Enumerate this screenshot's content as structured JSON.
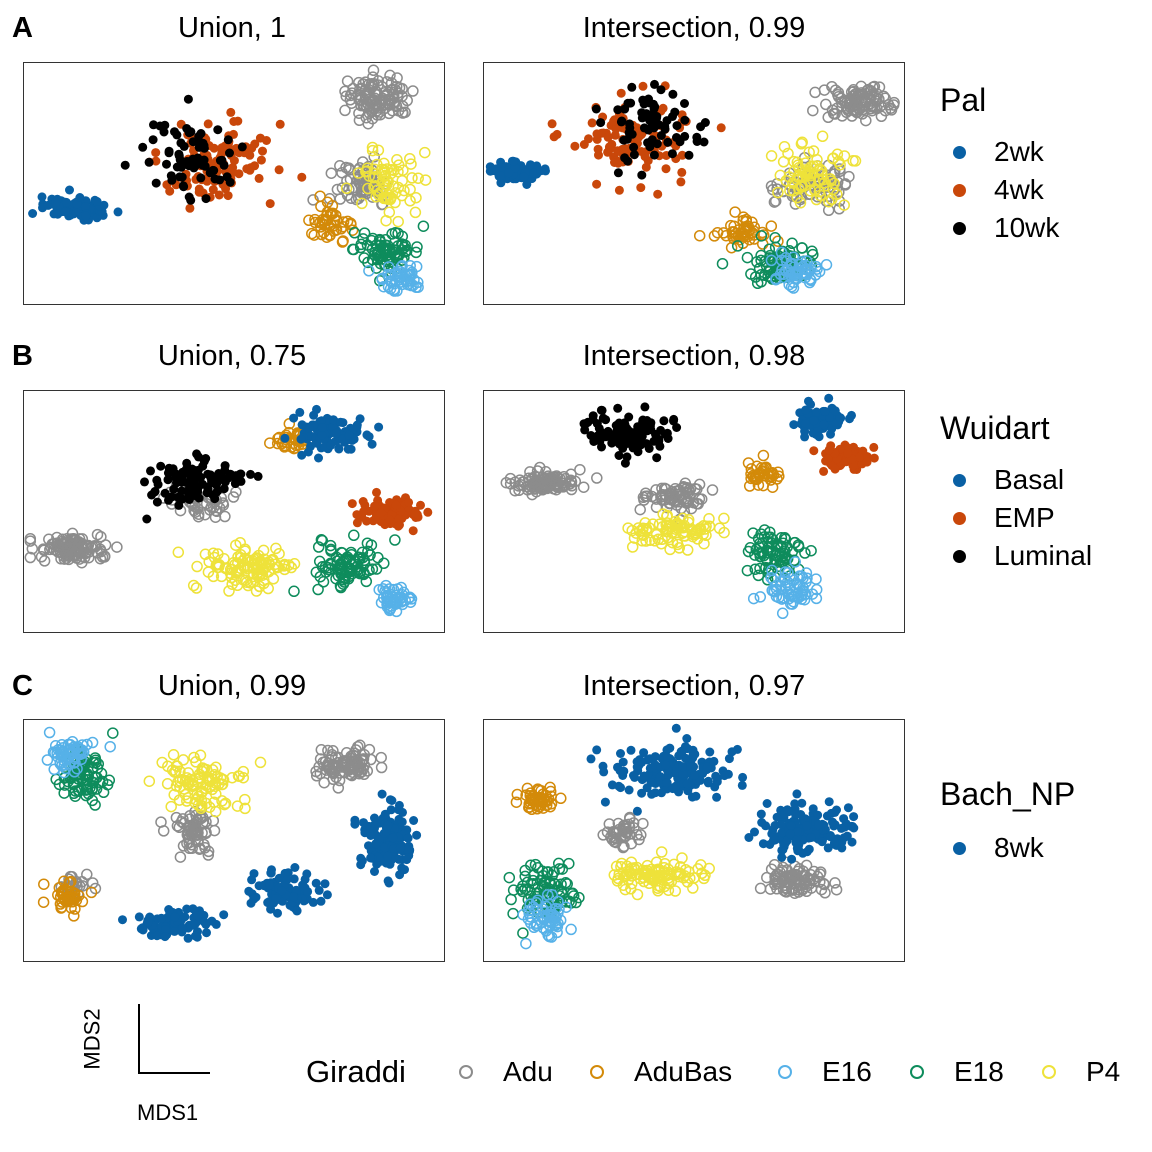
{
  "colors": {
    "Adu": "#8c8c8c",
    "AduBas": "#d38a09",
    "E16": "#56b1e8",
    "E18": "#0e8c5c",
    "P4": "#eee23a",
    "blue": "#0960a4",
    "orange": "#c9470a",
    "black": "#000000"
  },
  "axis_key": {
    "x_label": "MDS1",
    "y_label": "MDS2"
  },
  "giraddi_legend": {
    "title": "Giraddi",
    "entries": [
      "Adu",
      "AduBas",
      "E16",
      "E18",
      "P4"
    ]
  },
  "rows": [
    {
      "letter": "A",
      "legend": {
        "title": "Pal",
        "entries": [
          {
            "label": "2wk",
            "color": "blue"
          },
          {
            "label": "4wk",
            "color": "orange"
          },
          {
            "label": "10wk",
            "color": "black"
          }
        ]
      },
      "panels": [
        {
          "title": "Union, 1"
        },
        {
          "title": "Intersection, 0.99"
        }
      ]
    },
    {
      "letter": "B",
      "legend": {
        "title": "Wuidart",
        "entries": [
          {
            "label": "Basal",
            "color": "blue"
          },
          {
            "label": "EMP",
            "color": "orange"
          },
          {
            "label": "Luminal",
            "color": "black"
          }
        ]
      },
      "panels": [
        {
          "title": "Union, 0.75"
        },
        {
          "title": "Intersection, 0.98"
        }
      ]
    },
    {
      "letter": "C",
      "legend": {
        "title": "Bach_NP",
        "entries": [
          {
            "label": "8wk",
            "color": "blue"
          }
        ]
      },
      "panels": [
        {
          "title": "Union, 0.99"
        },
        {
          "title": "Intersection, 0.97"
        }
      ]
    }
  ],
  "chart_data": [
    {
      "type": "scatter",
      "title": "Union, 1",
      "clusters": [
        {
          "group": "Adu",
          "style": "open",
          "center": [
            0.84,
            0.14
          ],
          "spread": [
            0.07,
            0.08
          ],
          "n": 110
        },
        {
          "group": "Adu",
          "style": "open",
          "center": [
            0.8,
            0.5
          ],
          "spread": [
            0.06,
            0.1
          ],
          "n": 70
        },
        {
          "group": "P4",
          "style": "open",
          "center": [
            0.86,
            0.5
          ],
          "spread": [
            0.06,
            0.12
          ],
          "n": 70
        },
        {
          "group": "AduBas",
          "style": "open",
          "center": [
            0.73,
            0.66
          ],
          "spread": [
            0.05,
            0.06
          ],
          "n": 45
        },
        {
          "group": "E18",
          "style": "open",
          "center": [
            0.86,
            0.77
          ],
          "spread": [
            0.07,
            0.07
          ],
          "n": 80
        },
        {
          "group": "E16",
          "style": "open",
          "center": [
            0.89,
            0.88
          ],
          "spread": [
            0.05,
            0.05
          ],
          "n": 50
        },
        {
          "group": "2wk",
          "style": "filled",
          "center": [
            0.13,
            0.6
          ],
          "spread": [
            0.07,
            0.035
          ],
          "n": 100
        },
        {
          "group": "4wk",
          "style": "filled",
          "center": [
            0.45,
            0.4
          ],
          "spread": [
            0.12,
            0.16
          ],
          "n": 110
        },
        {
          "group": "10wk",
          "style": "filled",
          "center": [
            0.4,
            0.4
          ],
          "spread": [
            0.1,
            0.16
          ],
          "n": 70
        }
      ]
    },
    {
      "type": "scatter",
      "title": "Intersection, 0.99",
      "clusters": [
        {
          "group": "Adu",
          "style": "open",
          "center": [
            0.88,
            0.16
          ],
          "spread": [
            0.07,
            0.06
          ],
          "n": 100
        },
        {
          "group": "Adu",
          "style": "open",
          "center": [
            0.78,
            0.5
          ],
          "spread": [
            0.08,
            0.09
          ],
          "n": 70
        },
        {
          "group": "P4",
          "style": "open",
          "center": [
            0.78,
            0.46
          ],
          "spread": [
            0.08,
            0.11
          ],
          "n": 80
        },
        {
          "group": "AduBas",
          "style": "open",
          "center": [
            0.61,
            0.7
          ],
          "spread": [
            0.06,
            0.05
          ],
          "n": 50
        },
        {
          "group": "E18",
          "style": "open",
          "center": [
            0.71,
            0.82
          ],
          "spread": [
            0.07,
            0.07
          ],
          "n": 80
        },
        {
          "group": "E16",
          "style": "open",
          "center": [
            0.74,
            0.86
          ],
          "spread": [
            0.05,
            0.05
          ],
          "n": 55
        },
        {
          "group": "2wk",
          "style": "filled",
          "center": [
            0.07,
            0.45
          ],
          "spread": [
            0.05,
            0.035
          ],
          "n": 90
        },
        {
          "group": "4wk",
          "style": "filled",
          "center": [
            0.35,
            0.3
          ],
          "spread": [
            0.13,
            0.15
          ],
          "n": 110
        },
        {
          "group": "10wk",
          "style": "filled",
          "center": [
            0.4,
            0.26
          ],
          "spread": [
            0.1,
            0.14
          ],
          "n": 70
        }
      ]
    },
    {
      "type": "scatter",
      "title": "Union, 0.75",
      "clusters": [
        {
          "group": "Adu",
          "style": "open",
          "center": [
            0.11,
            0.65
          ],
          "spread": [
            0.07,
            0.05
          ],
          "n": 110
        },
        {
          "group": "Adu",
          "style": "open",
          "center": [
            0.41,
            0.45
          ],
          "spread": [
            0.06,
            0.06
          ],
          "n": 50
        },
        {
          "group": "P4",
          "style": "open",
          "center": [
            0.53,
            0.73
          ],
          "spread": [
            0.09,
            0.08
          ],
          "n": 110
        },
        {
          "group": "AduBas",
          "style": "open",
          "center": [
            0.64,
            0.2
          ],
          "spread": [
            0.04,
            0.05
          ],
          "n": 35
        },
        {
          "group": "E18",
          "style": "open",
          "center": [
            0.77,
            0.72
          ],
          "spread": [
            0.07,
            0.09
          ],
          "n": 90
        },
        {
          "group": "E16",
          "style": "open",
          "center": [
            0.88,
            0.86
          ],
          "spread": [
            0.04,
            0.05
          ],
          "n": 50
        },
        {
          "group": "Basal",
          "style": "filled",
          "center": [
            0.72,
            0.18
          ],
          "spread": [
            0.08,
            0.07
          ],
          "n": 100
        },
        {
          "group": "EMP",
          "style": "filled",
          "center": [
            0.87,
            0.5
          ],
          "spread": [
            0.06,
            0.05
          ],
          "n": 100
        },
        {
          "group": "Luminal",
          "style": "filled",
          "center": [
            0.4,
            0.37
          ],
          "spread": [
            0.1,
            0.08
          ],
          "n": 100
        }
      ]
    },
    {
      "type": "scatter",
      "title": "Intersection, 0.98",
      "clusters": [
        {
          "group": "Adu",
          "style": "open",
          "center": [
            0.14,
            0.38
          ],
          "spread": [
            0.07,
            0.04
          ],
          "n": 110
        },
        {
          "group": "Adu",
          "style": "open",
          "center": [
            0.45,
            0.43
          ],
          "spread": [
            0.07,
            0.05
          ],
          "n": 70
        },
        {
          "group": "P4",
          "style": "open",
          "center": [
            0.45,
            0.58
          ],
          "spread": [
            0.09,
            0.06
          ],
          "n": 90
        },
        {
          "group": "AduBas",
          "style": "open",
          "center": [
            0.66,
            0.35
          ],
          "spread": [
            0.04,
            0.05
          ],
          "n": 40
        },
        {
          "group": "E18",
          "style": "open",
          "center": [
            0.69,
            0.67
          ],
          "spread": [
            0.06,
            0.09
          ],
          "n": 80
        },
        {
          "group": "E16",
          "style": "open",
          "center": [
            0.72,
            0.82
          ],
          "spread": [
            0.05,
            0.07
          ],
          "n": 60
        },
        {
          "group": "Basal",
          "style": "filled",
          "center": [
            0.8,
            0.12
          ],
          "spread": [
            0.05,
            0.06
          ],
          "n": 80
        },
        {
          "group": "EMP",
          "style": "filled",
          "center": [
            0.86,
            0.27
          ],
          "spread": [
            0.05,
            0.05
          ],
          "n": 80
        },
        {
          "group": "Luminal",
          "style": "filled",
          "center": [
            0.36,
            0.17
          ],
          "spread": [
            0.11,
            0.07
          ],
          "n": 100
        }
      ]
    },
    {
      "type": "scatter",
      "title": "Union, 0.99",
      "clusters": [
        {
          "group": "Adu",
          "style": "open",
          "center": [
            0.76,
            0.18
          ],
          "spread": [
            0.07,
            0.07
          ],
          "n": 90
        },
        {
          "group": "Adu",
          "style": "open",
          "center": [
            0.4,
            0.47
          ],
          "spread": [
            0.05,
            0.08
          ],
          "n": 60
        },
        {
          "group": "Adu",
          "style": "open",
          "center": [
            0.12,
            0.68
          ],
          "spread": [
            0.03,
            0.04
          ],
          "n": 20
        },
        {
          "group": "P4",
          "style": "open",
          "center": [
            0.42,
            0.26
          ],
          "spread": [
            0.08,
            0.09
          ],
          "n": 100
        },
        {
          "group": "AduBas",
          "style": "open",
          "center": [
            0.1,
            0.73
          ],
          "spread": [
            0.04,
            0.05
          ],
          "n": 45
        },
        {
          "group": "E18",
          "style": "open",
          "center": [
            0.14,
            0.22
          ],
          "spread": [
            0.05,
            0.1
          ],
          "n": 90
        },
        {
          "group": "E16",
          "style": "open",
          "center": [
            0.11,
            0.14
          ],
          "spread": [
            0.04,
            0.06
          ],
          "n": 60
        },
        {
          "group": "8wk",
          "style": "filled",
          "center": [
            0.86,
            0.49
          ],
          "spread": [
            0.05,
            0.12
          ],
          "n": 170
        },
        {
          "group": "8wk",
          "style": "filled",
          "center": [
            0.62,
            0.7
          ],
          "spread": [
            0.07,
            0.07
          ],
          "n": 100
        },
        {
          "group": "8wk",
          "style": "filled",
          "center": [
            0.36,
            0.84
          ],
          "spread": [
            0.09,
            0.05
          ],
          "n": 90
        }
      ]
    },
    {
      "type": "scatter",
      "title": "Intersection, 0.97",
      "clusters": [
        {
          "group": "Adu",
          "style": "open",
          "center": [
            0.74,
            0.66
          ],
          "spread": [
            0.07,
            0.05
          ],
          "n": 90
        },
        {
          "group": "Adu",
          "style": "open",
          "center": [
            0.33,
            0.47
          ],
          "spread": [
            0.04,
            0.05
          ],
          "n": 45
        },
        {
          "group": "P4",
          "style": "open",
          "center": [
            0.41,
            0.64
          ],
          "spread": [
            0.1,
            0.06
          ],
          "n": 100
        },
        {
          "group": "AduBas",
          "style": "open",
          "center": [
            0.13,
            0.33
          ],
          "spread": [
            0.04,
            0.05
          ],
          "n": 45
        },
        {
          "group": "E18",
          "style": "open",
          "center": [
            0.14,
            0.71
          ],
          "spread": [
            0.07,
            0.1
          ],
          "n": 90
        },
        {
          "group": "E16",
          "style": "open",
          "center": [
            0.14,
            0.81
          ],
          "spread": [
            0.05,
            0.07
          ],
          "n": 60
        },
        {
          "group": "8wk",
          "style": "filled",
          "center": [
            0.76,
            0.45
          ],
          "spread": [
            0.1,
            0.08
          ],
          "n": 170
        },
        {
          "group": "8wk",
          "style": "filled",
          "center": [
            0.45,
            0.22
          ],
          "spread": [
            0.14,
            0.1
          ],
          "n": 160
        }
      ]
    }
  ]
}
